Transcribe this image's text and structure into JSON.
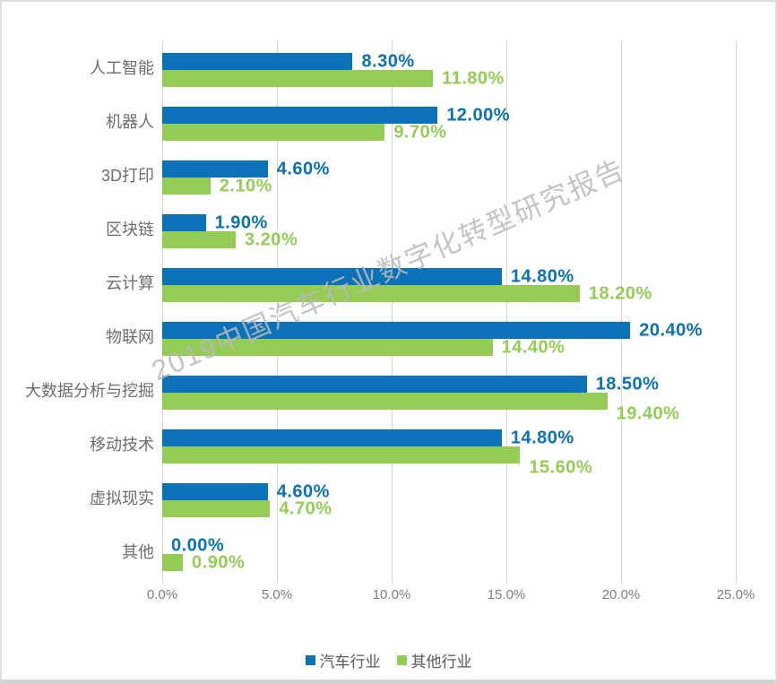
{
  "colors": {
    "bar_blue": "#0b72b9",
    "bar_green": "#93cd55",
    "gridline": "#d9d9d9",
    "axis_text": "#7f7f7f",
    "category_text": "#6d6d6d",
    "legend_text": "#595959",
    "watermark_text": "#bababa",
    "card_border": "#dcdcdc"
  },
  "chart_data": {
    "type": "bar",
    "orientation": "horizontal",
    "title": "",
    "categories": [
      "人工智能",
      "机器人",
      "3D打印",
      "区块链",
      "云计算",
      "物联网",
      "大数据分析与挖掘",
      "移动技术",
      "虚拟现实",
      "其他"
    ],
    "series": [
      {
        "name": "汽车行业",
        "color": "#0b72b9",
        "values": [
          8.3,
          12.0,
          4.6,
          1.9,
          14.8,
          20.4,
          18.5,
          14.8,
          4.6,
          0.0
        ],
        "labels": [
          "8.30%",
          "12.00%",
          "4.60%",
          "1.90%",
          "14.80%",
          "20.40%",
          "18.50%",
          "14.80%",
          "4.60%",
          "0.00%"
        ]
      },
      {
        "name": "其他行业",
        "color": "#93cd55",
        "values": [
          11.8,
          9.7,
          2.1,
          3.2,
          18.2,
          14.4,
          19.4,
          15.6,
          4.7,
          0.9
        ],
        "labels": [
          "11.80%",
          "9.70%",
          "2.10%",
          "3.20%",
          "18.20%",
          "14.40%",
          "19.40%",
          "15.60%",
          "4.70%",
          "0.90%"
        ]
      }
    ],
    "x_ticks": [
      "0.0%",
      "5.0%",
      "10.0%",
      "15.0%",
      "20.0%",
      "25.0%"
    ],
    "xlim": [
      0,
      25
    ],
    "grid": "vertical",
    "legend_position": "bottom",
    "watermark": "2019中国汽车行业数字化转型研究报告"
  }
}
